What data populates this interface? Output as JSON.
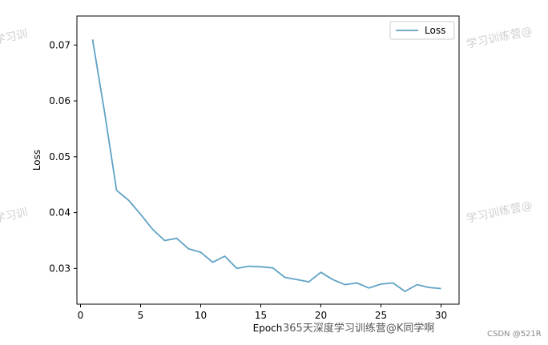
{
  "chart_data": {
    "type": "line",
    "title": "",
    "xlabel": "Epoch",
    "ylabel": "Loss",
    "xlim": [
      -0.3,
      31.5
    ],
    "ylim": [
      0.0236,
      0.0752
    ],
    "xticks": [
      0,
      5,
      10,
      15,
      20,
      25,
      30
    ],
    "yticks": [
      0.03,
      0.04,
      0.05,
      0.06,
      0.07
    ],
    "ytick_labels": [
      "0.03",
      "0.04",
      "0.05",
      "0.06",
      "0.07"
    ],
    "grid": false,
    "legend_position": "top-right",
    "series": [
      {
        "name": "Loss",
        "color": "#5fa2c5",
        "x": [
          1,
          2,
          3,
          4,
          5,
          6,
          7,
          8,
          9,
          10,
          11,
          12,
          13,
          14,
          15,
          16,
          17,
          18,
          19,
          20,
          21,
          22,
          23,
          24,
          25,
          26,
          27,
          28,
          29,
          30
        ],
        "values": [
          0.071,
          0.058,
          0.044,
          0.0422,
          0.0397,
          0.037,
          0.035,
          0.0354,
          0.0335,
          0.0329,
          0.0311,
          0.0322,
          0.03,
          0.0304,
          0.0303,
          0.0301,
          0.0284,
          0.028,
          0.0276,
          0.0293,
          0.028,
          0.0271,
          0.0274,
          0.0265,
          0.0272,
          0.0274,
          0.0259,
          0.0271,
          0.0266,
          0.0264
        ]
      }
    ]
  },
  "watermarks": {
    "left_top": "学习训",
    "left_mid": "学习训",
    "right_top": "学习训练营@",
    "right_mid": "学习训练营@",
    "bottom_brand": "365天深度学习训练营@K同学啊",
    "csdn": "CSDN @521R"
  }
}
